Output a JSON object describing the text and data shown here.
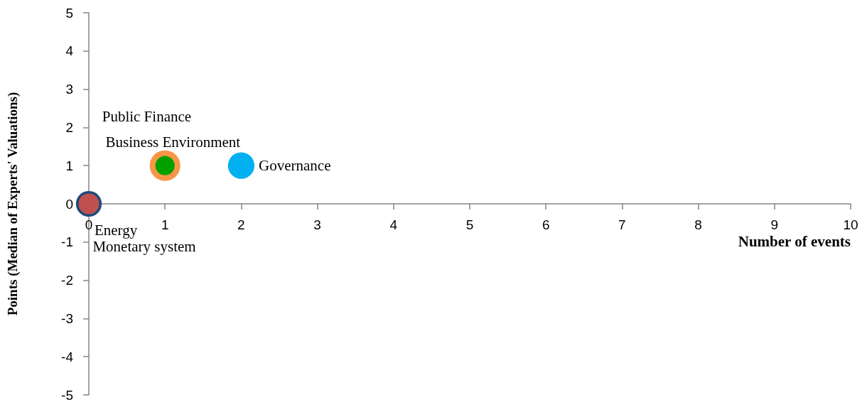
{
  "chart_data": {
    "type": "bubble",
    "xlabel": "Number of events",
    "ylabel": "Points (Median of Experts' Valuations)",
    "xlim": [
      0,
      10
    ],
    "xticks": [
      0,
      1,
      2,
      3,
      4,
      5,
      6,
      7,
      8,
      9,
      10
    ],
    "ylim": [
      -5,
      5
    ],
    "yticks": [
      -5,
      -4,
      -3,
      -2,
      -1,
      0,
      1,
      2,
      3,
      4,
      5
    ],
    "grid": false,
    "legend": false,
    "marker": "circle",
    "series": [
      {
        "name": "Public Finance",
        "color": "#f79646",
        "x": [
          1
        ],
        "values": [
          1
        ],
        "sizes": [
          1
        ]
      },
      {
        "name": "Business Environment",
        "color": "#00a000",
        "x": [
          1
        ],
        "values": [
          1
        ],
        "sizes": [
          0.4
        ]
      },
      {
        "name": "Governance",
        "color": "#00b0f0",
        "x": [
          2
        ],
        "values": [
          1
        ],
        "sizes": [
          0.75
        ]
      },
      {
        "name": "Energy",
        "color": "#1f497d",
        "x": [
          0
        ],
        "values": [
          0
        ],
        "sizes": [
          0.71
        ]
      },
      {
        "name": "Monetary system",
        "color": "#c0504d",
        "x": [
          0
        ],
        "values": [
          0
        ],
        "sizes": [
          0.46
        ]
      }
    ]
  }
}
